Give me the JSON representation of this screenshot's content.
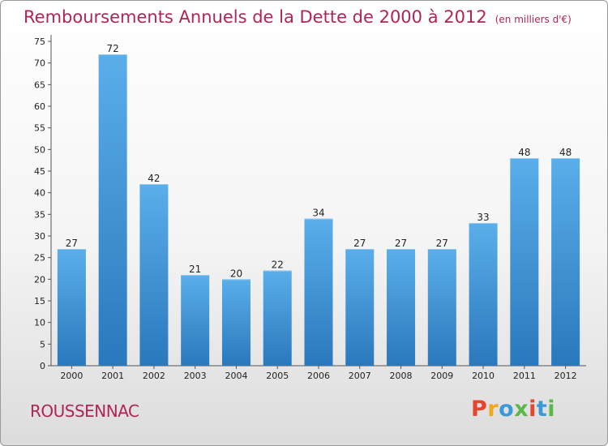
{
  "chart_data": {
    "type": "bar",
    "title": "Remboursements Annuels de la Dette de 2000 à 2012",
    "subtitle": "(en milliers d'€)",
    "categories": [
      "2000",
      "2001",
      "2002",
      "2003",
      "2004",
      "2005",
      "2006",
      "2007",
      "2008",
      "2009",
      "2010",
      "2011",
      "2012"
    ],
    "values": [
      27,
      72,
      42,
      21,
      20,
      22,
      34,
      27,
      27,
      27,
      33,
      48,
      48
    ],
    "ylim": [
      0,
      75
    ],
    "yticks": [
      0,
      5,
      10,
      15,
      20,
      25,
      30,
      35,
      40,
      45,
      50,
      55,
      60,
      65,
      70,
      75
    ],
    "xlabel": "",
    "ylabel": "",
    "grid": false,
    "bar_color": "#3d8fd6"
  },
  "footer": {
    "commune": "ROUSSENNAC",
    "brand": "Proxiti",
    "brand_colors": [
      "#e8442b",
      "#f2a81d",
      "#3a9ad9",
      "#59b847",
      "#e8442b",
      "#3a9ad9",
      "#59b847"
    ]
  }
}
